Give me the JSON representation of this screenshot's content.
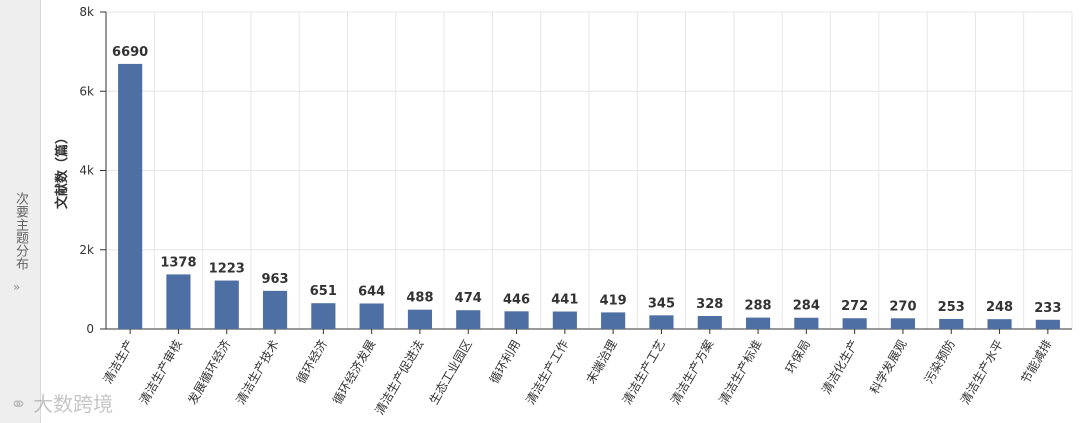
{
  "sidebar": {
    "label": "次要主题分布"
  },
  "watermark": "大数跨境",
  "chart_data": {
    "type": "bar",
    "y_label": "文献数（篇）",
    "categories": [
      "清洁生产",
      "清洁生产审核",
      "发展循环经济",
      "清洁生产技术",
      "循环经济",
      "循环经济发展",
      "清洁生产促进法",
      "生态工业园区",
      "循环利用",
      "清洁生产工作",
      "末端治理",
      "清洁生产工艺",
      "清洁生产方案",
      "清洁生产标准",
      "环保局",
      "清洁化生产",
      "科学发展观",
      "污染预防",
      "清洁生产水平",
      "节能减排"
    ],
    "values": [
      6690,
      1378,
      1223,
      963,
      651,
      644,
      488,
      474,
      446,
      441,
      419,
      345,
      328,
      288,
      284,
      272,
      270,
      253,
      248,
      233
    ],
    "color": "#4e6fa3",
    "ylim": [
      0,
      8000
    ],
    "yticks": [
      {
        "value": 0,
        "label": "0"
      },
      {
        "value": 2000,
        "label": "2k"
      },
      {
        "value": 4000,
        "label": "4k"
      },
      {
        "value": 6000,
        "label": "6k"
      },
      {
        "value": 8000,
        "label": "8k"
      }
    ],
    "grid": true
  }
}
